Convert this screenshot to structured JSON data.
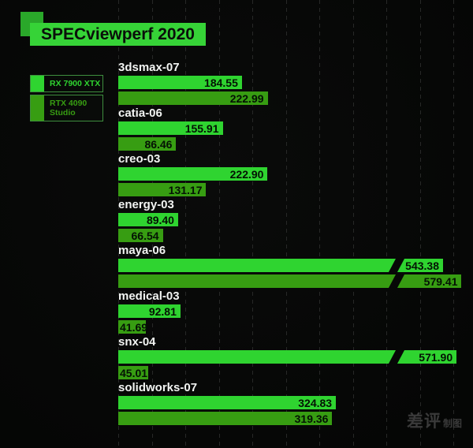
{
  "chart_data": {
    "type": "bar",
    "orientation": "horizontal",
    "title": "SPECviewperf 2020",
    "categories": [
      "3dsmax-07",
      "catia-06",
      "creo-03",
      "energy-03",
      "maya-06",
      "medical-03",
      "snx-04",
      "solidworks-07"
    ],
    "series": [
      {
        "name": "RX 7900 XTX",
        "color": "#2fd430",
        "values": [
          184.55,
          155.91,
          222.9,
          89.4,
          543.38,
          92.81,
          571.9,
          324.83
        ]
      },
      {
        "name": "RTX 4090 Studio",
        "color": "#379d12",
        "values": [
          222.99,
          86.46,
          131.17,
          66.54,
          579.41,
          41.69,
          45.01,
          319.36
        ]
      }
    ],
    "value_label_decimals": 2,
    "axis_break_value": 500,
    "gridline_spacing_units": 50,
    "grid": "vertical-dashed",
    "legend_position": "left"
  },
  "watermark": {
    "brand": "差评",
    "suffix": "制图"
  },
  "colors": {
    "background": "#070807",
    "title_bg": "#36d337",
    "title_text": "#0a0f0a",
    "accent_square": "#2aa82a",
    "category_text": "#f2f4f2",
    "value_text": "#041204",
    "gridline": "#272827",
    "legend_border": "#3e8e3e",
    "watermark_text": "#3a3a3a"
  }
}
